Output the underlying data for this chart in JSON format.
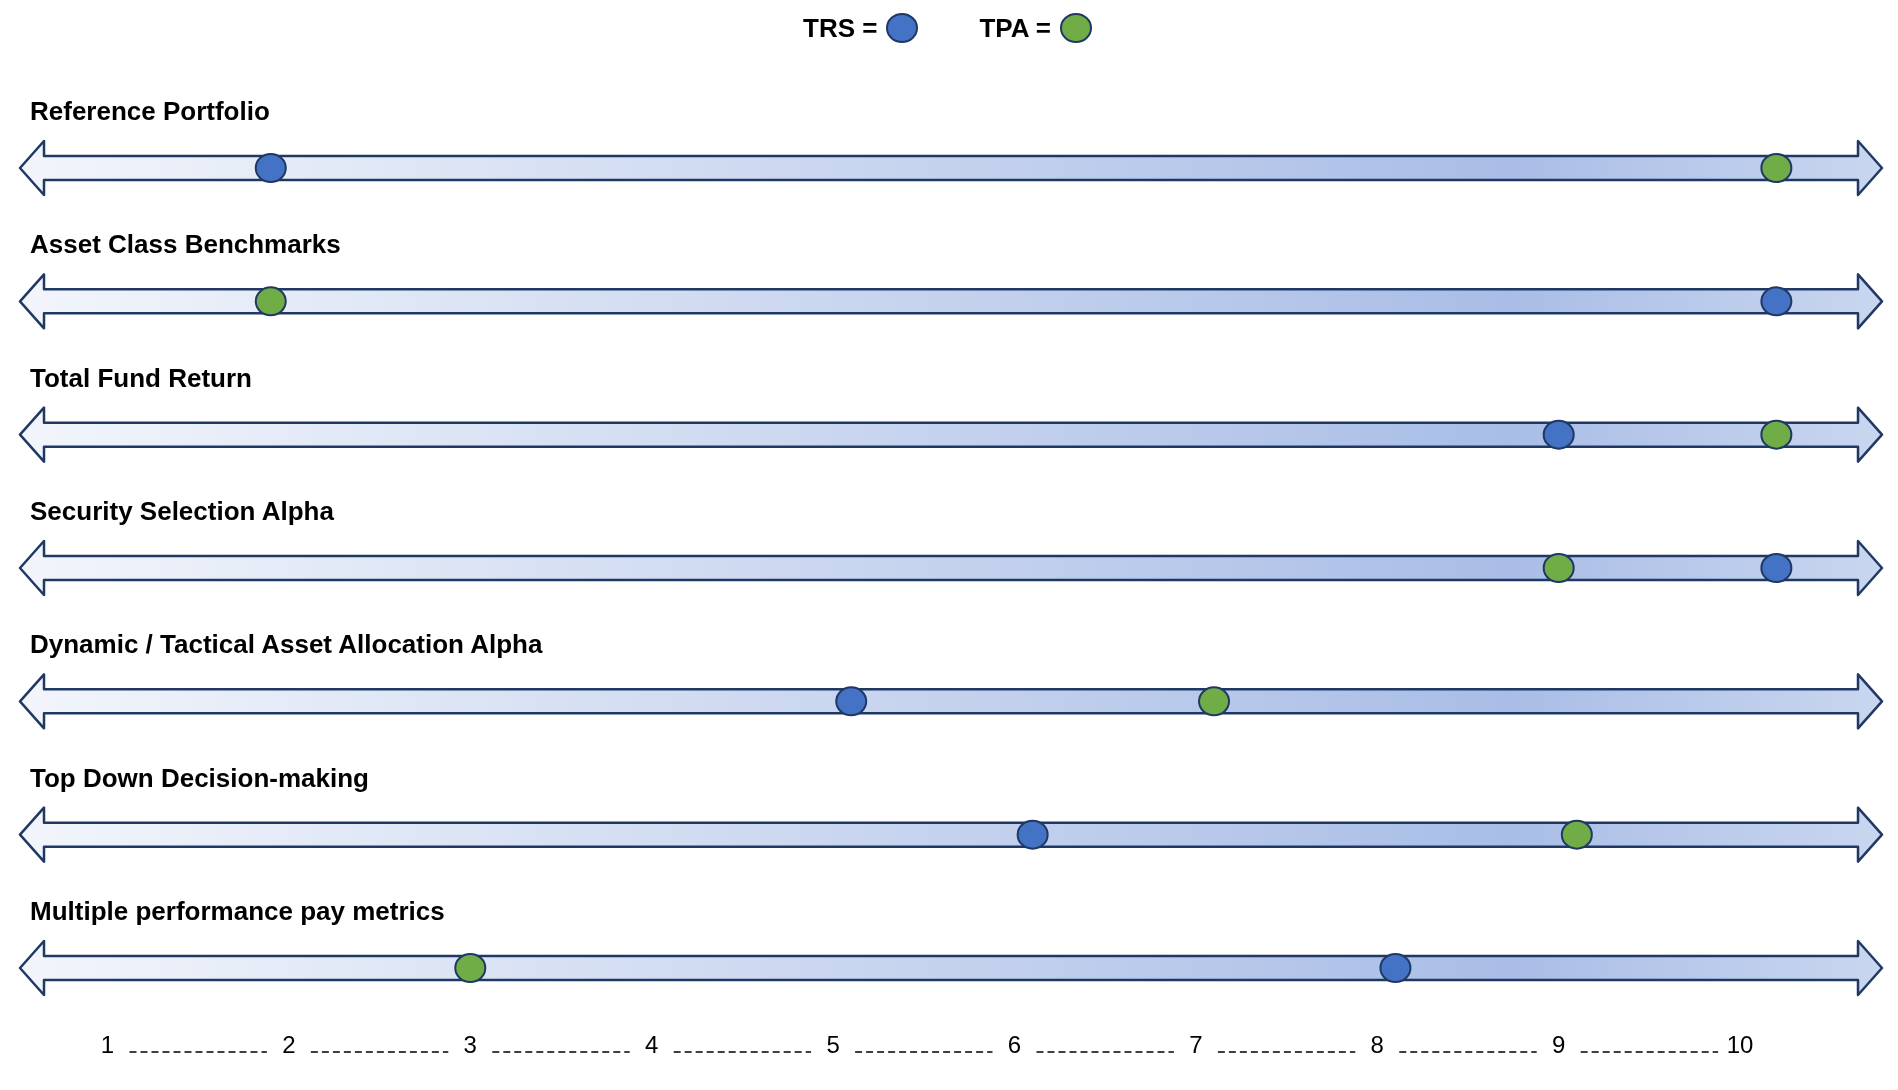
{
  "chart_data": {
    "type": "scatter",
    "orientation": "horizontal",
    "legend": "top",
    "marker": "circle",
    "categories": [
      "Reference Portfolio",
      "Asset Class Benchmarks",
      "Total Fund Return",
      "Security Selection Alpha",
      "Dynamic / Tactical Asset Allocation Alpha",
      "Top Down Decision-making",
      "Multiple performance pay metrics"
    ],
    "series": [
      {
        "name": "TRS =",
        "color": "#4472c4",
        "values": [
          1.9,
          10.2,
          9.0,
          10.2,
          5.1,
          6.1,
          8.1
        ]
      },
      {
        "name": "TPA =",
        "color": "#70ad47",
        "values": [
          10.2,
          1.9,
          10.2,
          9.0,
          7.1,
          9.1,
          3.0
        ]
      }
    ],
    "xlim": [
      0.65,
      10.65
    ],
    "xticks": [
      1,
      2,
      3,
      4,
      5,
      6,
      7,
      8,
      9,
      10
    ]
  }
}
